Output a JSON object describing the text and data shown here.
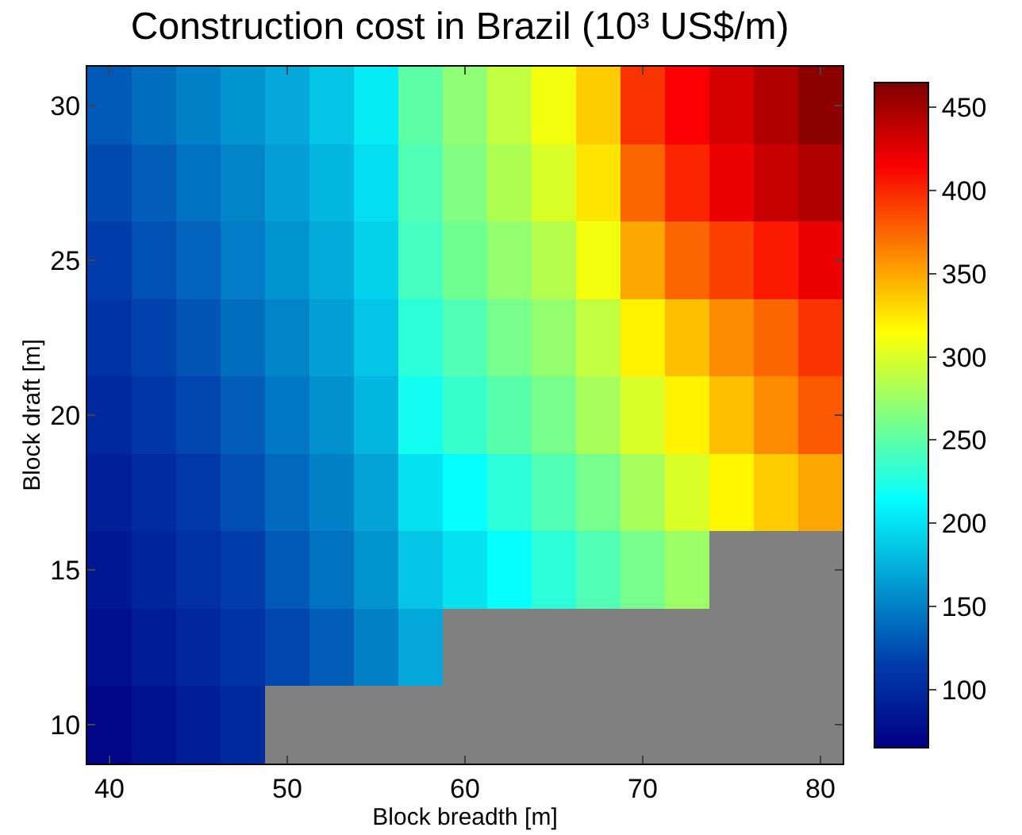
{
  "chart_data": {
    "type": "heatmap",
    "title": "Construction cost in Brazil (10³ US$/m)",
    "xlabel": "Block breadth [m]",
    "ylabel": "Block draft [m]",
    "categories": [
      "40",
      null,
      null,
      null,
      "50",
      null,
      null,
      null,
      "60",
      null,
      null,
      null,
      "70",
      null,
      null,
      null,
      "80"
    ],
    "y_categories": [
      "30",
      null,
      "25",
      null,
      "20",
      null,
      "15",
      null,
      "10"
    ],
    "cells": [
      [
        130,
        140,
        150,
        160,
        170,
        185,
        205,
        250,
        270,
        290,
        310,
        335,
        395,
        415,
        430,
        445,
        460
      ],
      [
        122,
        132,
        142,
        152,
        165,
        178,
        198,
        245,
        265,
        283,
        300,
        325,
        375,
        400,
        420,
        435,
        445
      ],
      [
        115,
        125,
        135,
        148,
        160,
        172,
        192,
        240,
        258,
        272,
        285,
        310,
        350,
        375,
        390,
        405,
        420
      ],
      [
        108,
        118,
        128,
        140,
        152,
        165,
        185,
        230,
        245,
        260,
        272,
        290,
        320,
        340,
        360,
        375,
        395
      ],
      [
        100,
        110,
        120,
        132,
        145,
        158,
        178,
        220,
        235,
        248,
        260,
        280,
        300,
        320,
        340,
        360,
        380
      ],
      [
        92,
        102,
        112,
        124,
        138,
        150,
        168,
        200,
        215,
        230,
        245,
        260,
        280,
        300,
        318,
        335,
        350
      ],
      [
        85,
        95,
        105,
        115,
        130,
        142,
        160,
        185,
        200,
        215,
        230,
        245,
        260,
        275,
        null,
        null,
        null
      ],
      [
        78,
        88,
        98,
        108,
        120,
        132,
        150,
        170,
        null,
        null,
        null,
        null,
        null,
        null,
        null,
        null,
        null
      ],
      [
        70,
        80,
        90,
        100,
        null,
        null,
        null,
        null,
        null,
        null,
        null,
        null,
        null,
        null,
        null,
        null,
        null
      ]
    ],
    "clim": [
      65,
      465
    ],
    "cticks": [
      100,
      150,
      200,
      250,
      300,
      350,
      400,
      450
    ]
  }
}
